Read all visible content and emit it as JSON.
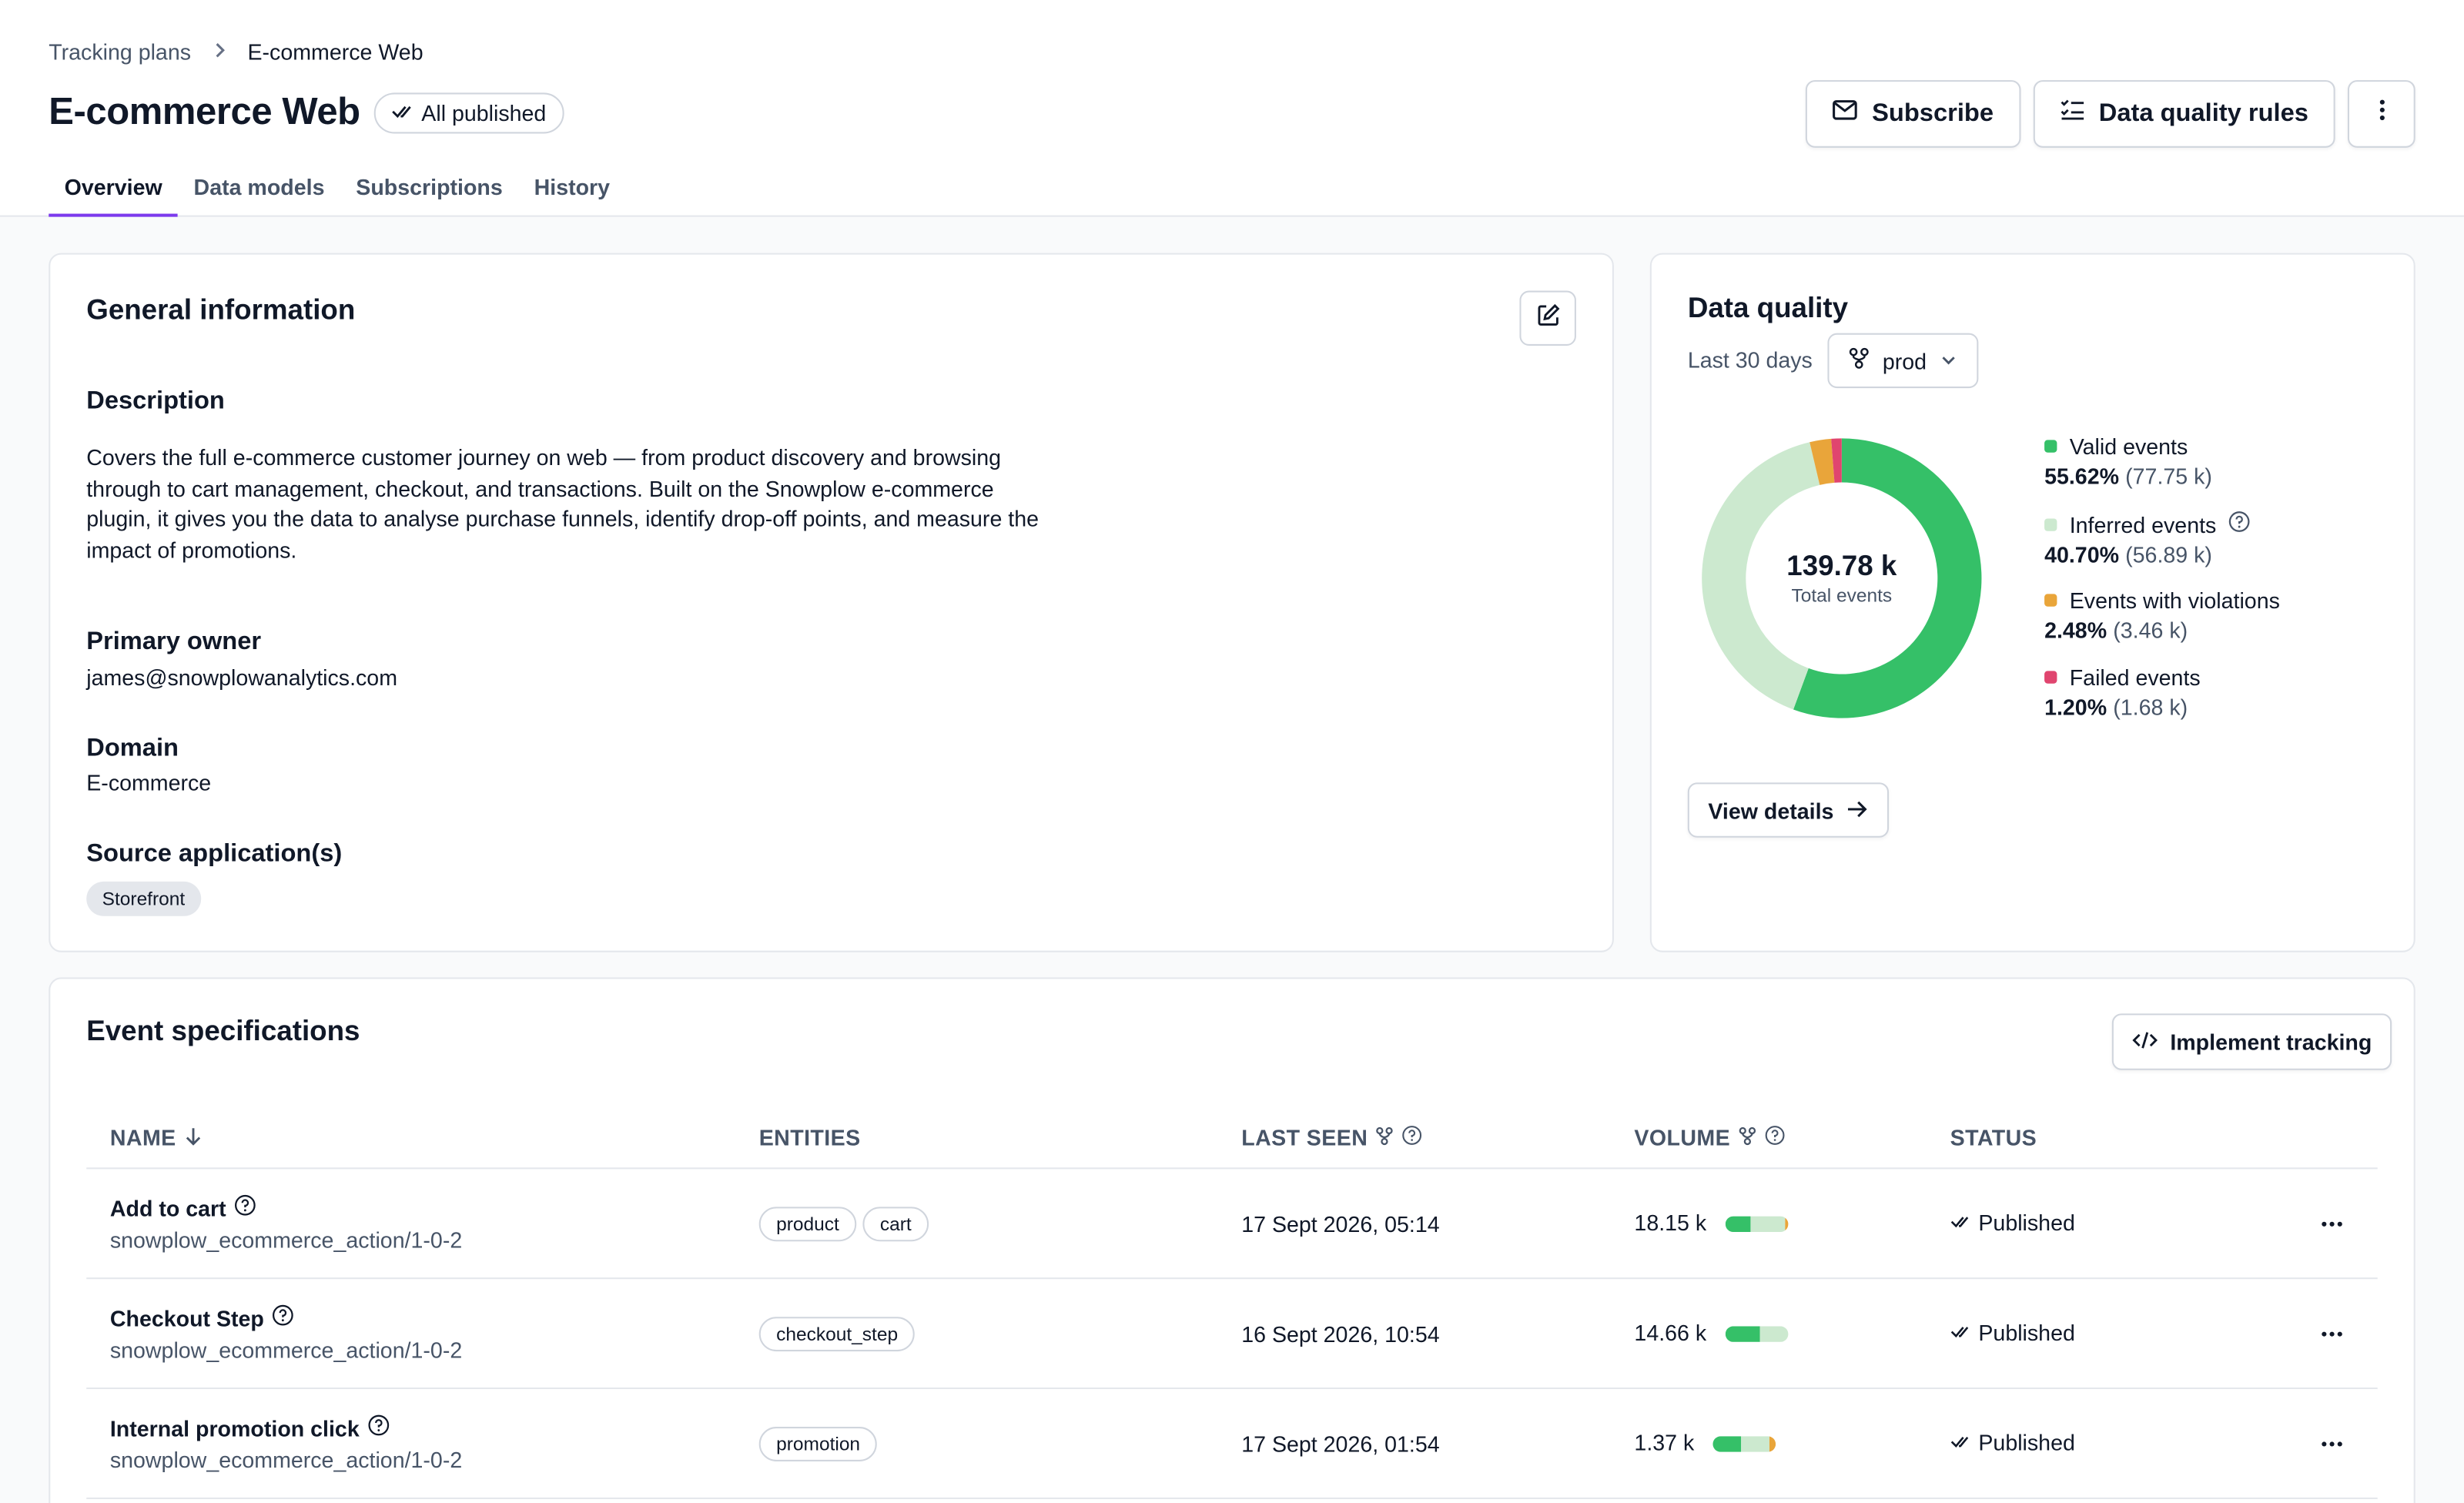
{
  "breadcrumb": {
    "parent": "Tracking plans",
    "current": "E-commerce Web"
  },
  "page": {
    "title": "E-commerce Web",
    "badge": "All published"
  },
  "actions": {
    "subscribe": "Subscribe",
    "data_quality_rules": "Data quality rules"
  },
  "tabs": [
    {
      "label": "Overview",
      "active": true
    },
    {
      "label": "Data models",
      "active": false
    },
    {
      "label": "Subscriptions",
      "active": false
    },
    {
      "label": "History",
      "active": false
    }
  ],
  "general": {
    "title": "General information",
    "description_label": "Description",
    "description": "Covers the full e-commerce customer journey on web — from product discovery and browsing through to cart management, checkout, and transactions. Built on the Snowplow e-commerce plugin, it gives you the data to analyse purchase funnels, identify drop-off points, and measure the impact of promotions.",
    "owner_label": "Primary owner",
    "owner": "james@snowplowanalytics.com",
    "domain_label": "Domain",
    "domain": "E-commerce",
    "source_label": "Source application(s)",
    "source_chip": "Storefront"
  },
  "data_quality": {
    "title": "Data quality",
    "period": "Last 30 days",
    "environment": "prod",
    "total_value": "139.78 k",
    "total_label": "Total events",
    "view_details": "View details",
    "legend": [
      {
        "label": "Valid events",
        "pct": "55.62%",
        "count": "(77.75 k)",
        "color": "#35c068"
      },
      {
        "label": "Inferred events",
        "pct": "40.70%",
        "count": "(56.89 k)",
        "color": "#cce9cf"
      },
      {
        "label": "Events with violations",
        "pct": "2.48%",
        "count": "(3.46 k)",
        "color": "#e9a53a"
      },
      {
        "label": "Failed events",
        "pct": "1.20%",
        "count": "(1.68 k)",
        "color": "#e0456f"
      }
    ]
  },
  "chart_data": {
    "type": "pie",
    "title": "",
    "categories": [
      "Valid events",
      "Inferred events",
      "Events with violations",
      "Failed events"
    ],
    "values": [
      55.62,
      40.7,
      2.48,
      1.2
    ],
    "colors": [
      "#35c068",
      "#cce9cf",
      "#e9a53a",
      "#e0456f"
    ],
    "center_value": "139.78 k",
    "center_label": "Total events"
  },
  "events": {
    "title": "Event specifications",
    "implement": "Implement tracking",
    "columns": {
      "name": "NAME",
      "entities": "ENTITIES",
      "last_seen": "LAST SEEN",
      "volume": "VOLUME",
      "status": "STATUS"
    },
    "rows": [
      {
        "name": "Add to cart",
        "schema": "snowplow_ecommerce_action/1-0-2",
        "entities": [
          "product",
          "cart"
        ],
        "last_seen": "17 Sept 2026, 05:14",
        "volume": "18.15 k",
        "bar": [
          0.4,
          0.55,
          0.05
        ],
        "status": "Published"
      },
      {
        "name": "Checkout Step",
        "schema": "snowplow_ecommerce_action/1-0-2",
        "entities": [
          "checkout_step"
        ],
        "last_seen": "16 Sept 2026, 10:54",
        "volume": "14.66 k",
        "bar": [
          0.55,
          0.45,
          0.0
        ],
        "status": "Published"
      },
      {
        "name": "Internal promotion click",
        "schema": "snowplow_ecommerce_action/1-0-2",
        "entities": [
          "promotion"
        ],
        "last_seen": "17 Sept 2026, 01:54",
        "volume": "1.37 k",
        "bar": [
          0.45,
          0.45,
          0.1
        ],
        "status": "Published"
      }
    ]
  }
}
